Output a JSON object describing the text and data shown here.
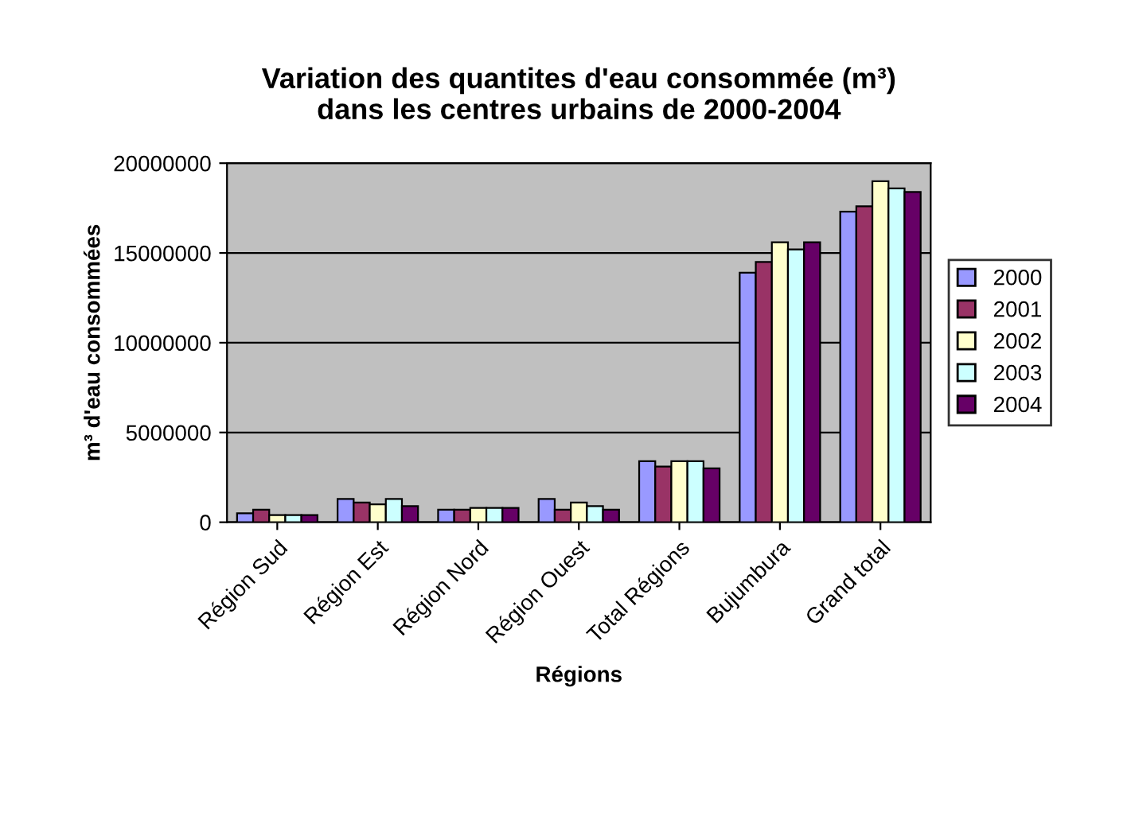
{
  "chart_data": {
    "type": "bar",
    "title": "Variation des quantites d'eau consommée (m³)\ndans les centres urbains de 2000-2004",
    "xlabel": "Régions",
    "ylabel": "m³ d'eau consommées",
    "categories": [
      "Région Sud",
      "Région Est",
      "Région Nord",
      "Région Ouest",
      "Total Régions",
      "Bujumbura",
      "Grand total"
    ],
    "series": [
      {
        "name": "2000",
        "color": "#9999ff",
        "values": [
          500000,
          1300000,
          700000,
          1300000,
          3400000,
          13900000,
          17300000
        ]
      },
      {
        "name": "2001",
        "color": "#993366",
        "values": [
          700000,
          1100000,
          700000,
          700000,
          3100000,
          14500000,
          17600000
        ]
      },
      {
        "name": "2002",
        "color": "#ffffcc",
        "values": [
          400000,
          1000000,
          800000,
          1100000,
          3400000,
          15600000,
          19000000
        ]
      },
      {
        "name": "2003",
        "color": "#ccffff",
        "values": [
          400000,
          1300000,
          800000,
          900000,
          3400000,
          15200000,
          18600000
        ]
      },
      {
        "name": "2004",
        "color": "#660066",
        "values": [
          400000,
          900000,
          800000,
          700000,
          3000000,
          15600000,
          18400000
        ]
      }
    ],
    "ylim": [
      0,
      20000000
    ],
    "yticks": [
      0,
      5000000,
      10000000,
      15000000,
      20000000
    ],
    "grid": "y",
    "legend": "right"
  }
}
